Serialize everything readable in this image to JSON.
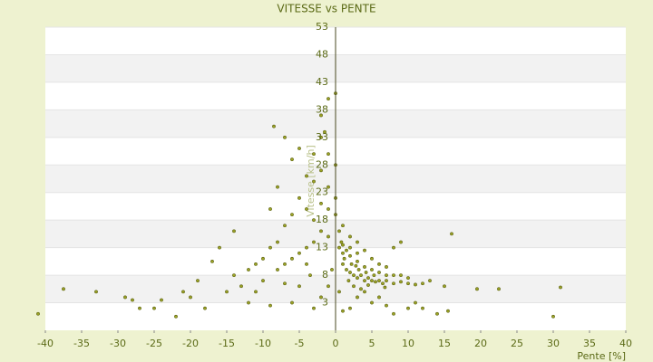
{
  "chart_data": {
    "type": "scatter",
    "title": "VITESSE vs PENTE",
    "x_label": "Pente [%]",
    "y_label": "Vitesse [km/h]",
    "xlim": [
      -40,
      40
    ],
    "xticks": [
      -40,
      -35,
      -30,
      -25,
      -20,
      -15,
      -10,
      -5,
      0,
      5,
      10,
      15,
      20,
      25,
      30,
      35,
      40
    ],
    "ylim": [
      -2,
      53
    ],
    "yticks": [
      3,
      8,
      13,
      18,
      23,
      28,
      33,
      38,
      43,
      48,
      53
    ],
    "color": "#9ca326",
    "x": [
      1,
      1.5,
      2,
      2.5,
      3,
      3.5,
      4,
      4.5,
      5,
      5.5,
      6,
      6.5,
      7,
      8,
      9,
      10,
      11,
      12,
      1,
      1.2,
      2,
      2.2,
      3,
      3.2,
      4,
      4.2,
      5,
      5.3,
      6,
      7,
      0.5,
      0.8,
      1,
      1.5,
      2,
      3,
      0.5,
      1,
      2,
      3,
      4,
      5,
      6,
      7,
      8,
      9,
      10,
      13,
      15,
      16,
      19.5,
      22.5,
      31,
      30,
      15.5,
      14,
      10,
      8,
      5,
      3,
      2,
      4,
      6,
      7,
      11,
      12,
      9,
      8,
      -1,
      -2,
      -3,
      -4,
      -5,
      -3,
      -2,
      -1,
      -4,
      -6,
      -5,
      -2,
      -1,
      -3,
      -6,
      -7,
      -8,
      -9,
      -5,
      -4,
      -3,
      -6,
      -7,
      -8,
      -10,
      -11,
      -12,
      -10,
      -13,
      -15,
      -12,
      -14,
      -16,
      -20,
      -18,
      -22,
      -25,
      -28,
      -33,
      -37.5,
      -41,
      -21,
      -17,
      -14,
      -9,
      -8,
      -7,
      -8.5,
      -1,
      0,
      -2,
      -1.5,
      0,
      0,
      0,
      -1,
      -2,
      -4,
      -5,
      -6,
      -3,
      -2,
      -1,
      -9,
      -11,
      -19,
      -24,
      -27,
      -29,
      0.5,
      1,
      -0.5,
      2.5,
      3.5,
      4.5,
      1.8,
      2.8,
      6.8,
      -3.5,
      -7
    ],
    "values": [
      10,
      9,
      8.5,
      8,
      7.5,
      8,
      7,
      7.5,
      7,
      6.8,
      7,
      6.5,
      7,
      6.5,
      6.8,
      6.5,
      6.3,
      6.5,
      12,
      11,
      11.5,
      10,
      10.5,
      9,
      9.5,
      8.5,
      9,
      8,
      8.5,
      8,
      13,
      14,
      13.5,
      12.5,
      13,
      12,
      16,
      17,
      15,
      14,
      12.5,
      11,
      10,
      9.5,
      8,
      8,
      7.5,
      7,
      6,
      15.5,
      5.5,
      5.5,
      5.8,
      0.5,
      1.5,
      1,
      2,
      1,
      3,
      4,
      2,
      5,
      4,
      2.5,
      3,
      2,
      14,
      13,
      15,
      16,
      18,
      20,
      22,
      25,
      27,
      24,
      26,
      29,
      31,
      33,
      30,
      30,
      19,
      17,
      14,
      13,
      12,
      13,
      14,
      11,
      10,
      9,
      11,
      10,
      9,
      7,
      6,
      5,
      3,
      8,
      13,
      4,
      2,
      0.5,
      2,
      3.5,
      5,
      5.5,
      1,
      5,
      10.5,
      16,
      20,
      24,
      33,
      35,
      40,
      41,
      37,
      34,
      28,
      22,
      19,
      20,
      21,
      10,
      6,
      3,
      2,
      4,
      6,
      2.5,
      5,
      7,
      3.5,
      2,
      4,
      5,
      1.5,
      9,
      6,
      5.5,
      6.2,
      7,
      9.7,
      5.8,
      8,
      6.5
    ]
  }
}
